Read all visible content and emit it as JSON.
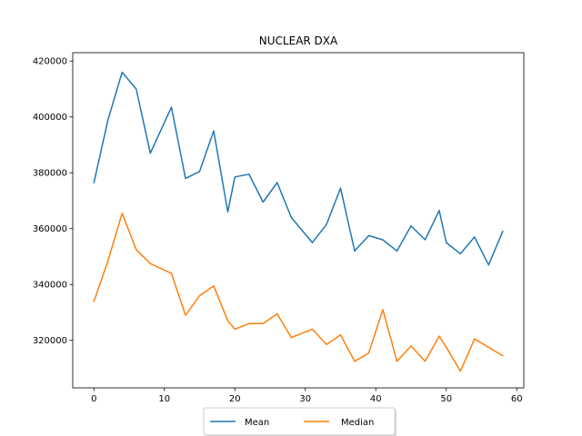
{
  "chart_data": {
    "type": "line",
    "title": "NUCLEAR DXA",
    "xlabel": "",
    "ylabel": "",
    "xlim": [
      -3,
      61
    ],
    "ylim": [
      303000,
      423000
    ],
    "xticks": [
      0,
      10,
      20,
      30,
      40,
      50,
      60
    ],
    "yticks": [
      320000,
      340000,
      360000,
      380000,
      400000,
      420000
    ],
    "legend_position": "bottom-center",
    "grid": false,
    "series": [
      {
        "name": "Mean",
        "color": "#1f77b4",
        "points": [
          [
            0,
            376500
          ],
          [
            2,
            399000
          ],
          [
            4,
            416000
          ],
          [
            6,
            410000
          ],
          [
            8,
            387000
          ],
          [
            11,
            403500
          ],
          [
            13,
            378000
          ],
          [
            15,
            380500
          ],
          [
            17,
            395000
          ],
          [
            19,
            366000
          ],
          [
            20,
            378500
          ],
          [
            22,
            379500
          ],
          [
            24,
            369500
          ],
          [
            26,
            376500
          ],
          [
            28,
            364000
          ],
          [
            31,
            355000
          ],
          [
            33,
            361500
          ],
          [
            35,
            374500
          ],
          [
            37,
            352000
          ],
          [
            39,
            357500
          ],
          [
            41,
            356000
          ],
          [
            43,
            352000
          ],
          [
            45,
            361000
          ],
          [
            47,
            356000
          ],
          [
            49,
            366500
          ],
          [
            50,
            355000
          ],
          [
            52,
            351000
          ],
          [
            54,
            357000
          ],
          [
            56,
            347000
          ],
          [
            58,
            359000
          ]
        ]
      },
      {
        "name": "Median",
        "color": "#ff7f0e",
        "points": [
          [
            0,
            334000
          ],
          [
            2,
            348500
          ],
          [
            4,
            365500
          ],
          [
            6,
            352500
          ],
          [
            8,
            347500
          ],
          [
            11,
            344000
          ],
          [
            13,
            329000
          ],
          [
            15,
            336000
          ],
          [
            17,
            339500
          ],
          [
            19,
            327000
          ],
          [
            20,
            324000
          ],
          [
            22,
            326000
          ],
          [
            24,
            326000
          ],
          [
            26,
            329500
          ],
          [
            28,
            321000
          ],
          [
            31,
            324000
          ],
          [
            33,
            318500
          ],
          [
            35,
            322000
          ],
          [
            37,
            312500
          ],
          [
            39,
            315500
          ],
          [
            41,
            331000
          ],
          [
            43,
            312500
          ],
          [
            45,
            318000
          ],
          [
            47,
            312500
          ],
          [
            49,
            321500
          ],
          [
            50,
            317500
          ],
          [
            52,
            309000
          ],
          [
            54,
            320500
          ],
          [
            58,
            314500
          ]
        ]
      }
    ]
  }
}
